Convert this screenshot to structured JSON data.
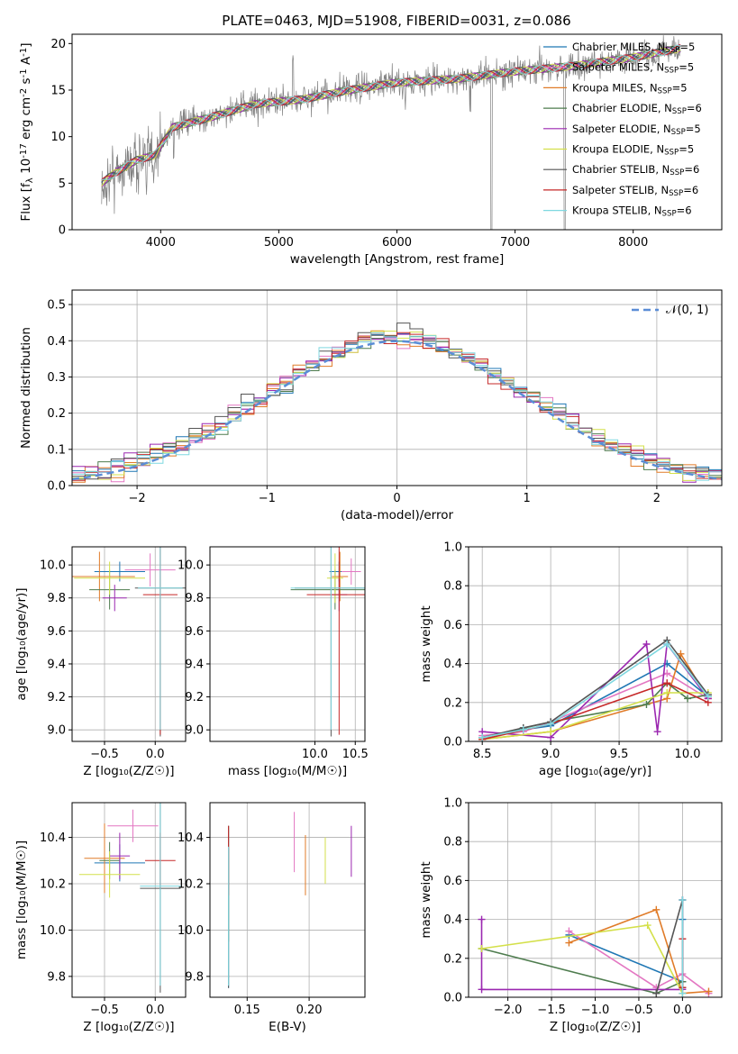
{
  "figure": {
    "title": "PLATE=0463, MJD=51908, FIBERID=0031, z=0.086",
    "models": [
      {
        "label": "Chabrier MILES, N_SSP=5",
        "family": "Chabrier MILES",
        "nssp": "5",
        "color": "#1f77b4"
      },
      {
        "label": "Salpeter MILES, N_SSP=5",
        "family": "Salpeter MILES",
        "nssp": "5",
        "color": "#e377c2"
      },
      {
        "label": "Kroupa MILES, N_SSP=5",
        "family": "Kroupa MILES",
        "nssp": "5",
        "color": "#e07b28"
      },
      {
        "label": "Chabrier ELODIE, N_SSP=6",
        "family": "Chabrier ELODIE",
        "nssp": "6",
        "color": "#4e7c4e"
      },
      {
        "label": "Salpeter ELODIE, N_SSP=5",
        "family": "Salpeter ELODIE",
        "nssp": "5",
        "color": "#9b27b0"
      },
      {
        "label": "Kroupa ELODIE, N_SSP=5",
        "family": "Kroupa ELODIE",
        "nssp": "5",
        "color": "#d4e04a"
      },
      {
        "label": "Chabrier STELIB, N_SSP=6",
        "family": "Chabrier STELIB",
        "nssp": "6",
        "color": "#555555"
      },
      {
        "label": "Salpeter STELIB, N_SSP=6",
        "family": "Salpeter STELIB",
        "nssp": "6",
        "color": "#c62828"
      },
      {
        "label": "Kroupa STELIB, N_SSP=6",
        "family": "Kroupa STELIB",
        "nssp": "6",
        "color": "#7fd8e0"
      }
    ]
  },
  "chart_data": [
    {
      "id": "spectrum",
      "type": "line",
      "xlabel": "wavelength [Angstrom, rest frame]",
      "ylabel": "Flux [f_λ 10^-17 erg cm^-2 s^-1 A^-1]",
      "xlim": [
        3250,
        8750
      ],
      "ylim": [
        0,
        21
      ],
      "xticks": [
        4000,
        5000,
        6000,
        7000,
        8000
      ],
      "yticks": [
        0,
        5,
        10,
        15,
        20
      ],
      "grid": false,
      "legend": "right",
      "data_color": "#808080",
      "model_color": "#7fd8e0",
      "continuum": [
        [
          3500,
          5
        ],
        [
          3600,
          6
        ],
        [
          3800,
          7.5
        ],
        [
          3950,
          8
        ],
        [
          4000,
          9
        ],
        [
          4100,
          11
        ],
        [
          4400,
          12
        ],
        [
          4800,
          13.5
        ],
        [
          5200,
          14
        ],
        [
          5600,
          15
        ],
        [
          6000,
          15.8
        ],
        [
          6500,
          16.2
        ],
        [
          7000,
          17
        ],
        [
          7500,
          17.6
        ],
        [
          8000,
          18.5
        ],
        [
          8400,
          19.5
        ]
      ],
      "spikes": [
        [
          3520,
          -3
        ],
        [
          3880,
          -4
        ],
        [
          4110,
          -3
        ],
        [
          5120,
          4
        ],
        [
          6800,
          -19
        ],
        [
          7420,
          -20
        ],
        [
          6620,
          -3
        ],
        [
          6070,
          -2
        ]
      ]
    },
    {
      "id": "residuals",
      "type": "line",
      "xlabel": "(data-model)/error",
      "ylabel": "Normed distribution",
      "xlim": [
        -2.5,
        2.5
      ],
      "ylim": [
        0,
        0.54
      ],
      "xticks": [
        -2,
        -1,
        0,
        1,
        2
      ],
      "yticks": [
        0.0,
        0.1,
        0.2,
        0.3,
        0.4,
        0.5
      ],
      "grid": true,
      "legend": "top-right",
      "curve_label": "𝒩(0, 1)",
      "curve_color": "#5b8dd6",
      "bin_width": 0.1,
      "bin_start": -2.5
    },
    {
      "id": "age-vs-Z",
      "type": "scatter",
      "xlabel": "Z [log₁₀(Z/Z☉)]",
      "ylabel": "age  [log₁₀(age/yr)]",
      "xlim": [
        -0.82,
        0.3
      ],
      "ylim": [
        8.93,
        10.11
      ],
      "xticks": [
        -0.5,
        0.0
      ],
      "yticks": [
        9.0,
        9.2,
        9.4,
        9.6,
        9.8,
        10.0
      ],
      "grid": true,
      "points": [
        {
          "m": 0,
          "x": -0.35,
          "y": 9.96,
          "xe": 0.25,
          "ye": 0.06
        },
        {
          "m": 1,
          "x": -0.05,
          "y": 9.97,
          "xe": 0.25,
          "ye": 0.1
        },
        {
          "m": 2,
          "x": -0.55,
          "y": 9.93,
          "xe": 0.35,
          "ye": 0.15
        },
        {
          "m": 3,
          "x": -0.45,
          "y": 9.85,
          "xe": 0.2,
          "ye": 0.12
        },
        {
          "m": 4,
          "x": -0.4,
          "y": 9.8,
          "xe": 0.12,
          "ye": 0.08
        },
        {
          "m": 5,
          "x": -0.45,
          "y": 9.92,
          "xe": 0.35,
          "ye": 0.1
        },
        {
          "m": 6,
          "x": 0.05,
          "y": 9.86,
          "xe": 0.25,
          "ye": 0.9
        },
        {
          "m": 7,
          "x": 0.05,
          "y": 9.82,
          "xe": 0.17,
          "ye": 0.85
        },
        {
          "m": 8,
          "x": 0.05,
          "y": 9.86,
          "xe": 0.22,
          "ye": 0.86
        }
      ]
    },
    {
      "id": "age-vs-mass",
      "type": "scatter",
      "xlabel": "mass [log₁₀(M/M☉)]",
      "ylabel": "",
      "xlim": [
        8.7,
        10.62
      ],
      "ylim": [
        8.93,
        10.11
      ],
      "xticks": [
        10.0,
        10.5
      ],
      "yticks": [
        9.0,
        9.2,
        9.4,
        9.6,
        9.8,
        10.0
      ],
      "grid": true,
      "points": [
        {
          "m": 0,
          "x": 10.3,
          "y": 9.96,
          "xe": 0.12,
          "ye": 0.06
        },
        {
          "m": 1,
          "x": 10.45,
          "y": 9.96,
          "xe": 0.12,
          "ye": 0.08
        },
        {
          "m": 2,
          "x": 10.31,
          "y": 9.93,
          "xe": 0.1,
          "ye": 0.15
        },
        {
          "m": 3,
          "x": 10.25,
          "y": 9.85,
          "xe": 0.55,
          "ye": 0.12
        },
        {
          "m": 4,
          "x": 10.3,
          "y": 9.82,
          "xe": 0.1,
          "ye": 0.1
        },
        {
          "m": 5,
          "x": 10.25,
          "y": 9.92,
          "xe": 0.1,
          "ye": 0.15
        },
        {
          "m": 6,
          "x": 10.2,
          "y": 9.86,
          "xe": 0.45,
          "ye": 0.9
        },
        {
          "m": 7,
          "x": 10.3,
          "y": 9.82,
          "xe": 0.4,
          "ye": 0.85
        },
        {
          "m": 8,
          "x": 10.2,
          "y": 9.86,
          "xe": 0.5,
          "ye": 0.86
        }
      ]
    },
    {
      "id": "weight-vs-age",
      "type": "line",
      "xlabel": "age  [log₁₀(age/yr)]",
      "ylabel": "mass weight",
      "xlim": [
        8.4,
        10.25
      ],
      "ylim": [
        0,
        1
      ],
      "xticks": [
        8.5,
        9.0,
        9.5,
        10.0
      ],
      "yticks": [
        0.0,
        0.2,
        0.4,
        0.6,
        0.8,
        1.0
      ],
      "grid": true,
      "series": [
        {
          "m": 0,
          "x": [
            8.5,
            8.8,
            9.0,
            9.85,
            10.15
          ],
          "y": [
            0.02,
            0.06,
            0.08,
            0.4,
            0.23
          ]
        },
        {
          "m": 1,
          "x": [
            8.5,
            8.8,
            9.0,
            9.85,
            10.15
          ],
          "y": [
            0.03,
            0.05,
            0.1,
            0.35,
            0.22
          ]
        },
        {
          "m": 2,
          "x": [
            8.5,
            9.0,
            9.85,
            9.95,
            10.15
          ],
          "y": [
            0.01,
            0.05,
            0.22,
            0.45,
            0.22
          ]
        },
        {
          "m": 3,
          "x": [
            8.5,
            9.0,
            9.7,
            9.85,
            10.0,
            10.15
          ],
          "y": [
            0.02,
            0.1,
            0.19,
            0.3,
            0.22,
            0.24
          ]
        },
        {
          "m": 4,
          "x": [
            8.5,
            9.0,
            9.7,
            9.78,
            9.85,
            10.15
          ],
          "y": [
            0.05,
            0.02,
            0.5,
            0.05,
            0.5,
            0.22
          ]
        },
        {
          "m": 5,
          "x": [
            8.5,
            9.0,
            9.85,
            10.15
          ],
          "y": [
            0.01,
            0.05,
            0.25,
            0.25
          ]
        },
        {
          "m": 6,
          "x": [
            8.5,
            8.8,
            9.0,
            9.85,
            10.15
          ],
          "y": [
            0.02,
            0.07,
            0.1,
            0.52,
            0.24
          ]
        },
        {
          "m": 7,
          "x": [
            8.5,
            9.0,
            9.85,
            10.15
          ],
          "y": [
            0.01,
            0.09,
            0.3,
            0.2
          ]
        },
        {
          "m": 8,
          "x": [
            8.5,
            8.8,
            9.0,
            9.85,
            10.15
          ],
          "y": [
            0.02,
            0.06,
            0.09,
            0.5,
            0.23
          ]
        }
      ]
    },
    {
      "id": "mass-vs-Z",
      "type": "scatter",
      "xlabel": "Z [log₁₀(Z/Z☉)]",
      "ylabel": "mass [log₁₀(M/M☉)]",
      "xlim": [
        -0.82,
        0.3
      ],
      "ylim": [
        9.71,
        10.55
      ],
      "xticks": [
        -0.5,
        0.0
      ],
      "yticks": [
        9.8,
        10.0,
        10.2,
        10.4
      ],
      "grid": true,
      "points": [
        {
          "m": 0,
          "x": -0.35,
          "y": 10.29,
          "xe": 0.25,
          "ye": 0.08
        },
        {
          "m": 1,
          "x": -0.22,
          "y": 10.45,
          "xe": 0.25,
          "ye": 0.07
        },
        {
          "m": 2,
          "x": -0.5,
          "y": 10.31,
          "xe": 0.2,
          "ye": 0.15
        },
        {
          "m": 3,
          "x": -0.45,
          "y": 10.3,
          "xe": 0.1,
          "ye": 0.08
        },
        {
          "m": 4,
          "x": -0.35,
          "y": 10.32,
          "xe": 0.1,
          "ye": 0.1
        },
        {
          "m": 5,
          "x": -0.45,
          "y": 10.24,
          "xe": 0.3,
          "ye": 0.1
        },
        {
          "m": 6,
          "x": 0.05,
          "y": 10.18,
          "xe": 0.2,
          "ye": 0.45
        },
        {
          "m": 7,
          "x": 0.05,
          "y": 10.3,
          "xe": 0.15,
          "ye": 0.12
        },
        {
          "m": 8,
          "x": 0.05,
          "y": 10.19,
          "xe": 0.2,
          "ye": 0.43
        }
      ]
    },
    {
      "id": "mass-vs-ebv",
      "type": "scatter",
      "xlabel": "E(B-V)",
      "ylabel": "",
      "xlim": [
        0.12,
        0.245
      ],
      "ylim": [
        9.71,
        10.55
      ],
      "xticks": [
        0.15,
        0.2
      ],
      "yticks": [
        9.8,
        10.0,
        10.2,
        10.4
      ],
      "grid": true,
      "points": [
        {
          "m": 0,
          "x": 0.135,
          "y": 10.05,
          "xe": 0,
          "ye": 0.3
        },
        {
          "m": 1,
          "x": 0.188,
          "y": 10.38,
          "xe": 0,
          "ye": 0.13
        },
        {
          "m": 2,
          "x": 0.197,
          "y": 10.28,
          "xe": 0,
          "ye": 0.13
        },
        {
          "m": 3,
          "x": 0.135,
          "y": 10.2,
          "xe": 0,
          "ye": 0.25
        },
        {
          "m": 4,
          "x": 0.234,
          "y": 10.34,
          "xe": 0,
          "ye": 0.11
        },
        {
          "m": 5,
          "x": 0.213,
          "y": 10.3,
          "xe": 0,
          "ye": 0.1
        },
        {
          "m": 6,
          "x": 0.135,
          "y": 10.1,
          "xe": 0,
          "ye": 0.35
        },
        {
          "m": 7,
          "x": 0.135,
          "y": 10.3,
          "xe": 0,
          "ye": 0.15
        },
        {
          "m": 8,
          "x": 0.135,
          "y": 10.06,
          "xe": 0,
          "ye": 0.3
        }
      ]
    },
    {
      "id": "weight-vs-Z",
      "type": "line",
      "xlabel": "Z [log₁₀(Z/Z☉)]",
      "ylabel": "mass weight",
      "xlim": [
        -2.45,
        0.45
      ],
      "ylim": [
        0,
        1
      ],
      "xticks": [
        -2.0,
        -1.5,
        -1.0,
        -0.5,
        0.0
      ],
      "yticks": [
        0.0,
        0.2,
        0.4,
        0.6,
        0.8,
        1.0
      ],
      "grid": true,
      "series": [
        {
          "m": 0,
          "x": [
            -1.3,
            -0.0,
            0.0
          ],
          "y": [
            0.32,
            0.08,
            0.4
          ]
        },
        {
          "m": 1,
          "x": [
            -1.3,
            -0.3,
            0.0,
            0.3
          ],
          "y": [
            0.34,
            0.05,
            0.12,
            0.02
          ]
        },
        {
          "m": 2,
          "x": [
            -1.3,
            -0.3,
            0.0,
            0.3
          ],
          "y": [
            0.28,
            0.45,
            0.02,
            0.03
          ]
        },
        {
          "m": 3,
          "x": [
            -2.3,
            -0.3,
            0.0
          ],
          "y": [
            0.25,
            0.02,
            0.08
          ]
        },
        {
          "m": 4,
          "x": [
            -2.3,
            -2.3,
            0.0,
            0.0
          ],
          "y": [
            0.4,
            0.04,
            0.04,
            0.5
          ]
        },
        {
          "m": 5,
          "x": [
            -2.3,
            -0.4,
            0.0
          ],
          "y": [
            0.25,
            0.37,
            0.02
          ]
        },
        {
          "m": 6,
          "x": [
            -0.3,
            0.0,
            0.0
          ],
          "y": [
            0.02,
            0.5,
            0.05
          ]
        },
        {
          "m": 7,
          "x": [
            0.0,
            0.0
          ],
          "y": [
            0.05,
            0.3
          ]
        },
        {
          "m": 8,
          "x": [
            0.0,
            0.0
          ],
          "y": [
            0.02,
            0.5
          ]
        }
      ]
    }
  ]
}
